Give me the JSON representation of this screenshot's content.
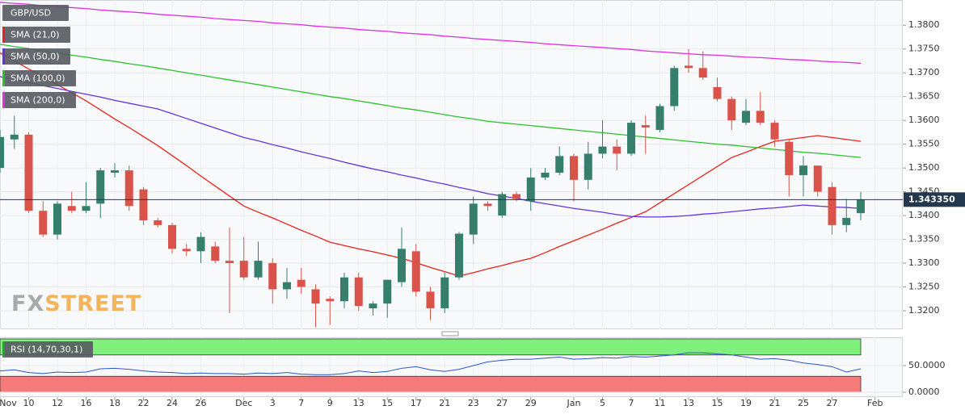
{
  "chart_data": [
    {
      "type": "candlestick",
      "title": "GBP/USD",
      "watermark": [
        "FX",
        "STREET"
      ],
      "categories": [
        "Nov",
        null,
        "10",
        null,
        "12",
        null,
        "16",
        null,
        "18",
        null,
        "22",
        null,
        "24",
        null,
        "26",
        null,
        null,
        "Dec",
        null,
        "3",
        null,
        "7",
        null,
        "9",
        null,
        "13",
        null,
        "15",
        null,
        "17",
        null,
        "21",
        null,
        "23",
        null,
        "27",
        null,
        "29",
        null,
        null,
        "Jan",
        null,
        "5",
        null,
        "7",
        null,
        "11",
        null,
        "13",
        null,
        "15",
        null,
        "19",
        null,
        "21",
        null,
        "25",
        null,
        "27",
        null,
        null,
        "Feb"
      ],
      "open": [
        1.35,
        1.356,
        1.357,
        1.341,
        1.336,
        1.342,
        1.341,
        1.3425,
        1.349,
        1.3495,
        1.3455,
        1.339,
        1.338,
        1.333,
        1.3325,
        1.3335,
        1.3305,
        1.3305,
        1.327,
        1.33,
        1.3245,
        1.3265,
        1.3245,
        1.3225,
        1.322,
        1.327,
        1.3205,
        1.3215,
        1.326,
        1.3325,
        1.324,
        1.3205,
        1.327,
        1.336,
        1.3425,
        1.34,
        1.3445,
        1.343,
        1.348,
        1.349,
        1.3525,
        1.3475,
        1.353,
        1.3545,
        1.353,
        1.359,
        1.358,
        1.363,
        1.3715,
        1.371,
        1.367,
        1.3645,
        1.3595,
        1.362,
        1.3595,
        1.3555,
        1.3485,
        1.3505,
        1.346,
        1.338,
        1.3405,
        null
      ],
      "high": [
        1.358,
        1.361,
        1.3575,
        1.343,
        1.343,
        1.345,
        1.347,
        1.35,
        1.351,
        1.3505,
        1.346,
        1.3395,
        1.3385,
        1.334,
        1.3365,
        1.3345,
        1.3375,
        1.3355,
        1.3345,
        1.331,
        1.329,
        1.329,
        1.3255,
        1.323,
        1.328,
        1.328,
        1.322,
        1.3265,
        1.3375,
        1.334,
        1.325,
        1.328,
        1.3365,
        1.344,
        1.343,
        1.345,
        1.345,
        1.35,
        1.35,
        1.3545,
        1.353,
        1.3555,
        1.36,
        1.356,
        1.36,
        1.361,
        1.3635,
        1.3715,
        1.375,
        1.3745,
        1.369,
        1.365,
        1.3645,
        1.366,
        1.36,
        1.356,
        1.3525,
        1.3505,
        1.347,
        1.3435,
        1.345,
        null
      ],
      "low": [
        1.349,
        1.354,
        1.3405,
        1.3355,
        1.335,
        1.3405,
        1.3405,
        1.3395,
        1.348,
        1.341,
        1.338,
        1.3375,
        1.332,
        1.3315,
        1.33,
        1.33,
        1.3195,
        1.3265,
        1.3265,
        1.3215,
        1.3225,
        1.3235,
        1.3165,
        1.317,
        1.3205,
        1.32,
        1.319,
        1.3185,
        1.325,
        1.323,
        1.318,
        1.3195,
        1.3265,
        1.334,
        1.341,
        1.3395,
        1.343,
        1.341,
        1.3475,
        1.3485,
        1.343,
        1.3455,
        1.352,
        1.3495,
        1.3525,
        1.353,
        1.3575,
        1.362,
        1.37,
        1.3685,
        1.364,
        1.358,
        1.359,
        1.359,
        1.3545,
        1.344,
        1.344,
        1.344,
        1.336,
        1.3365,
        1.339,
        null
      ],
      "close": [
        1.3565,
        1.357,
        1.341,
        1.336,
        1.3425,
        1.341,
        1.342,
        1.3495,
        1.3495,
        1.342,
        1.339,
        1.338,
        1.333,
        1.3325,
        1.3355,
        1.3305,
        1.33,
        1.327,
        1.3305,
        1.3245,
        1.326,
        1.325,
        1.3215,
        1.322,
        1.327,
        1.321,
        1.3215,
        1.3265,
        1.333,
        1.324,
        1.3205,
        1.327,
        1.3362,
        1.3425,
        1.342,
        1.3445,
        1.3435,
        1.348,
        1.349,
        1.3525,
        1.3475,
        1.353,
        1.3545,
        1.353,
        1.3595,
        1.3585,
        1.363,
        1.371,
        1.371,
        1.369,
        1.3645,
        1.36,
        1.362,
        1.3595,
        1.356,
        1.3485,
        1.3505,
        1.345,
        1.338,
        1.3395,
        1.34335,
        null
      ],
      "up_color": "#357f6c",
      "down_color": "#d9534a",
      "series": [
        {
          "name": "SMA (21,0)",
          "color": "#e8231a",
          "values": [
            1.3742,
            1.3725,
            1.3708,
            1.3692,
            1.3675,
            1.3658,
            1.3641,
            1.3622,
            1.3603,
            1.3585,
            1.3566,
            1.3547,
            1.3526,
            1.3505,
            1.3483,
            1.3462,
            1.3441,
            1.342,
            1.3407,
            1.3395,
            1.3382,
            1.3369,
            1.3357,
            1.3344,
            1.3337,
            1.333,
            1.3324,
            1.3317,
            1.331,
            1.3301,
            1.3291,
            1.3282,
            1.3273,
            1.328,
            1.3288,
            1.3295,
            1.3303,
            1.331,
            1.3322,
            1.3335,
            1.3347,
            1.3359,
            1.3371,
            1.3384,
            1.3396,
            1.3408,
            1.3427,
            1.3446,
            1.3465,
            1.3484,
            1.3503,
            1.3522,
            1.3533,
            1.3545,
            1.3556,
            1.356,
            1.3564,
            1.3568,
            1.3564,
            1.356,
            1.3556,
            null
          ]
        },
        {
          "name": "SMA (50,0)",
          "color": "#6233dc",
          "values": [
            1.3692,
            1.3686,
            1.368,
            1.3673,
            1.3667,
            1.3661,
            1.3655,
            1.3649,
            1.3642,
            1.3636,
            1.363,
            1.3624,
            1.3614,
            1.3604,
            1.3594,
            1.3584,
            1.3574,
            1.3564,
            1.3557,
            1.3549,
            1.3542,
            1.3534,
            1.3527,
            1.352,
            1.3512,
            1.3505,
            1.3498,
            1.3492,
            1.3485,
            1.3479,
            1.3472,
            1.3466,
            1.3459,
            1.3453,
            1.3446,
            1.3441,
            1.3436,
            1.343,
            1.3425,
            1.342,
            1.3415,
            1.3411,
            1.3407,
            1.3402,
            1.3398,
            1.3397,
            1.3397,
            1.3398,
            1.34,
            1.3403,
            1.3405,
            1.3408,
            1.3411,
            1.3414,
            1.3416,
            1.3419,
            1.3422,
            1.342,
            1.3418,
            1.3417,
            1.3415,
            null
          ]
        },
        {
          "name": "SMA (100,0)",
          "color": "#2bc12b",
          "values": [
            1.376,
            1.3755,
            1.3751,
            1.3746,
            1.3742,
            1.3737,
            1.3733,
            1.3728,
            1.3724,
            1.3719,
            1.3715,
            1.371,
            1.3705,
            1.37,
            1.3695,
            1.369,
            1.3685,
            1.368,
            1.3675,
            1.367,
            1.3665,
            1.366,
            1.3655,
            1.365,
            1.3646,
            1.3641,
            1.3636,
            1.3631,
            1.3626,
            1.3622,
            1.3617,
            1.3612,
            1.3607,
            1.3603,
            1.3598,
            1.3595,
            1.3592,
            1.3589,
            1.3586,
            1.3583,
            1.358,
            1.3577,
            1.3574,
            1.3571,
            1.3568,
            1.3565,
            1.3562,
            1.3559,
            1.3556,
            1.3553,
            1.355,
            1.3548,
            1.3545,
            1.3542,
            1.3539,
            1.3536,
            1.3533,
            1.3531,
            1.3528,
            1.3525,
            1.3522,
            null
          ]
        },
        {
          "name": "SMA (200,0)",
          "color": "#e02ee0",
          "values": [
            1.3848,
            1.3846,
            1.3844,
            1.3841,
            1.3839,
            1.3837,
            1.3835,
            1.3832,
            1.383,
            1.3828,
            1.3826,
            1.3823,
            1.3821,
            1.3819,
            1.3817,
            1.3814,
            1.3812,
            1.381,
            1.3808,
            1.3805,
            1.3803,
            1.3801,
            1.3798,
            1.3796,
            1.3794,
            1.3791,
            1.3789,
            1.3787,
            1.3784,
            1.3782,
            1.378,
            1.3777,
            1.3775,
            1.3772,
            1.377,
            1.3768,
            1.3766,
            1.3764,
            1.3761,
            1.3759,
            1.3757,
            1.3755,
            1.3753,
            1.3751,
            1.3749,
            1.3746,
            1.3744,
            1.3742,
            1.374,
            1.3738,
            1.3737,
            1.3735,
            1.3733,
            1.3732,
            1.373,
            1.3728,
            1.3727,
            1.3725,
            1.3723,
            1.3722,
            1.372,
            null
          ]
        }
      ],
      "last_price": {
        "value": 1.34335,
        "label": "1.343350"
      },
      "ylim": [
        1.3161,
        1.3853
      ],
      "yticks": [
        {
          "value": 1.32,
          "label": "1.3200"
        },
        {
          "value": 1.325,
          "label": "1.3250"
        },
        {
          "value": 1.33,
          "label": "1.3300"
        },
        {
          "value": 1.335,
          "label": "1.3350"
        },
        {
          "value": 1.34,
          "label": "1.3400"
        },
        {
          "value": 1.345,
          "label": "1.3450"
        },
        {
          "value": 1.35,
          "label": "1.3500"
        },
        {
          "value": 1.355,
          "label": "1.3550"
        },
        {
          "value": 1.36,
          "label": "1.3600"
        },
        {
          "value": 1.365,
          "label": "1.3650"
        },
        {
          "value": 1.37,
          "label": "1.3700"
        },
        {
          "value": 1.375,
          "label": "1.3750"
        },
        {
          "value": 1.38,
          "label": "1.3800"
        }
      ],
      "grid": true
    },
    {
      "type": "line",
      "title": "RSI (14,70,30,1)",
      "color": "#2a56c6",
      "values": [
        40,
        42,
        37,
        35,
        38,
        37,
        38,
        44,
        45,
        43,
        40,
        38,
        37,
        35,
        36,
        35,
        35,
        34,
        36,
        35,
        37,
        34,
        33,
        33,
        35,
        40,
        37,
        39,
        45,
        48,
        42,
        39,
        43,
        50,
        57,
        60,
        62,
        62,
        64,
        66,
        62,
        63,
        65,
        64,
        67,
        66,
        68,
        70,
        74,
        74,
        72,
        70,
        66,
        62,
        63,
        60,
        55,
        52,
        48,
        38,
        44,
        null
      ],
      "bands": [
        {
          "from": 70,
          "to": 100,
          "color": "#80f07c"
        },
        {
          "from": 0,
          "to": 30,
          "color": "#f67a7a"
        }
      ],
      "ylim": [
        -9,
        103
      ],
      "yticks": [
        {
          "value": 50,
          "label": "50.0000"
        },
        {
          "value": 0,
          "label": "0.0000"
        }
      ],
      "grid": true
    }
  ]
}
